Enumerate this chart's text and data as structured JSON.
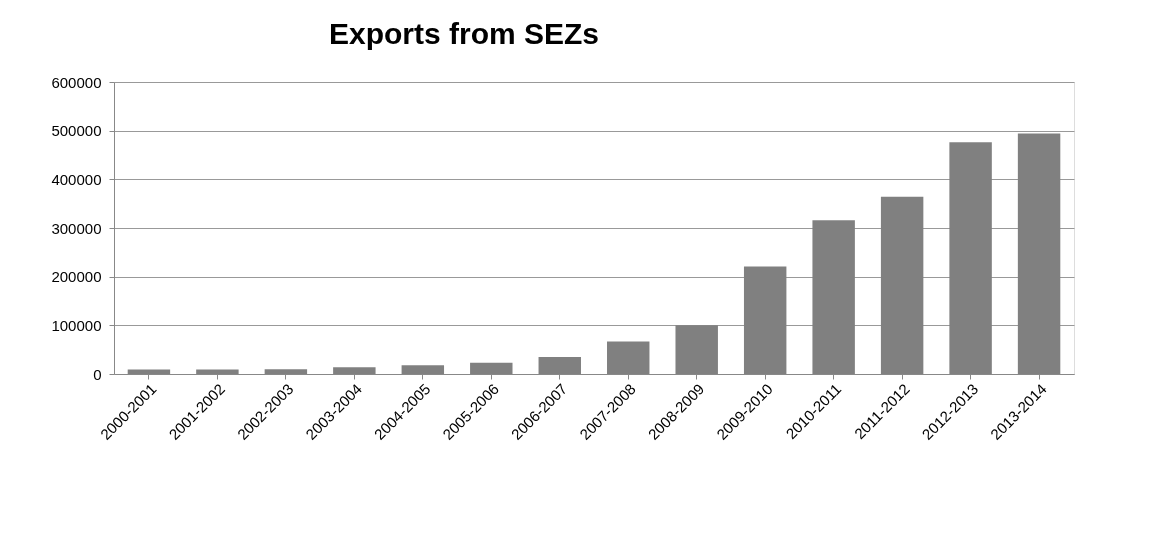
{
  "chart_data": {
    "type": "bar",
    "title": "Exports  from SEZs",
    "categories": [
      "2000-2001",
      "2001-2002",
      "2002-2003",
      "2003-2004",
      "2004-2005",
      "2005-2006",
      "2006-2007",
      "2007-2008",
      "2008-2009",
      "2009-2010",
      "2010-2011",
      "2011-2012",
      "2012-2013",
      "2013-2014"
    ],
    "values": [
      9000,
      9000,
      10000,
      14000,
      18000,
      23000,
      35000,
      67000,
      100000,
      221000,
      316000,
      364000,
      476000,
      494000
    ],
    "color": "#808080",
    "ylim": [
      0,
      600000
    ],
    "yticks": [
      0,
      100000,
      200000,
      300000,
      400000,
      500000,
      600000
    ],
    "grid": "y"
  }
}
